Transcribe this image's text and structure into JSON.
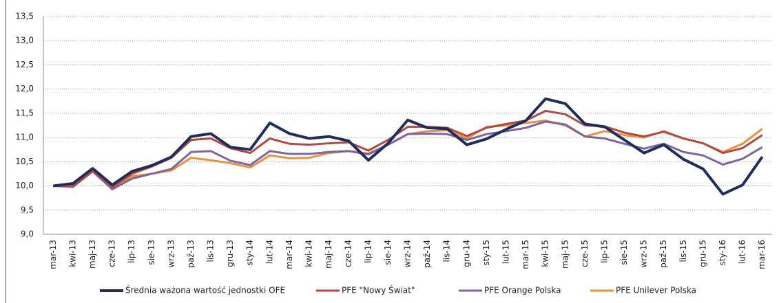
{
  "chart_data": {
    "type": "line",
    "categories": [
      "mar-13",
      "kwi-13",
      "maj-13",
      "cze-13",
      "lip-13",
      "sie-13",
      "wrz-13",
      "paź-13",
      "lis-13",
      "gru-13",
      "sty-14",
      "lut-14",
      "mar-14",
      "kwi-14",
      "maj-14",
      "cze-14",
      "lip-14",
      "sie-14",
      "wrz-14",
      "paź-14",
      "lis-14",
      "gru-14",
      "sty-15",
      "lut-15",
      "mar-15",
      "kwi-15",
      "maj-15",
      "cze-15",
      "lip-15",
      "sie-15",
      "wrz-15",
      "paź-15",
      "lis-15",
      "gru-15",
      "sty-16",
      "lut-16",
      "mar-16"
    ],
    "series": [
      {
        "name": "Średnia ważona wartość jednostki OFE",
        "color": "#1f2d5c",
        "values": [
          10.0,
          10.05,
          10.36,
          10.02,
          10.3,
          10.42,
          10.6,
          11.02,
          11.08,
          10.8,
          10.75,
          11.3,
          11.08,
          10.98,
          11.02,
          10.93,
          10.53,
          10.88,
          11.36,
          11.2,
          11.18,
          10.85,
          10.97,
          11.17,
          11.35,
          11.8,
          11.7,
          11.28,
          11.22,
          10.95,
          10.68,
          10.85,
          10.55,
          10.35,
          9.83,
          10.02,
          10.6
        ]
      },
      {
        "name": "PFE \"Nowy Świat\"",
        "color": "#b04a45",
        "values": [
          10.0,
          9.98,
          10.3,
          9.97,
          10.25,
          10.4,
          10.58,
          10.95,
          10.98,
          10.78,
          10.68,
          10.98,
          10.87,
          10.85,
          10.88,
          10.9,
          10.73,
          10.95,
          11.22,
          11.22,
          11.2,
          11.03,
          11.2,
          11.28,
          11.35,
          11.55,
          11.48,
          11.25,
          11.23,
          11.1,
          11.02,
          11.12,
          10.98,
          10.88,
          10.68,
          10.78,
          11.05
        ]
      },
      {
        "name": "PFE Orange Polska",
        "color": "#7e64a0",
        "values": [
          10.0,
          10.03,
          10.3,
          9.93,
          10.15,
          10.25,
          10.35,
          10.7,
          10.72,
          10.52,
          10.43,
          10.72,
          10.66,
          10.66,
          10.7,
          10.72,
          10.65,
          10.85,
          11.07,
          11.08,
          11.07,
          10.95,
          11.07,
          11.13,
          11.2,
          11.33,
          11.27,
          11.02,
          10.98,
          10.87,
          10.77,
          10.87,
          10.7,
          10.63,
          10.44,
          10.56,
          10.8
        ]
      },
      {
        "name": "PFE Unilever Polska",
        "color": "#e8913f",
        "values": [
          10.0,
          10.05,
          10.3,
          9.95,
          10.2,
          10.25,
          10.32,
          10.58,
          10.53,
          10.47,
          10.38,
          10.63,
          10.57,
          10.58,
          10.68,
          10.72,
          10.67,
          10.85,
          11.07,
          11.13,
          11.15,
          10.98,
          11.22,
          11.25,
          11.3,
          11.35,
          11.25,
          11.02,
          11.13,
          11.05,
          11.0,
          11.13,
          10.98,
          10.88,
          10.7,
          10.87,
          11.18
        ]
      }
    ],
    "ylim": [
      9.0,
      13.5
    ],
    "yticks": [
      {
        "value": 9.0,
        "label": "9,0"
      },
      {
        "value": 9.5,
        "label": "9,5"
      },
      {
        "value": 10.0,
        "label": "10,0"
      },
      {
        "value": 10.5,
        "label": "10,5"
      },
      {
        "value": 11.0,
        "label": "11,0"
      },
      {
        "value": 11.5,
        "label": "11,5"
      },
      {
        "value": 12.0,
        "label": "12,0"
      },
      {
        "value": 12.5,
        "label": "12,5"
      },
      {
        "value": 13.0,
        "label": "13,0"
      },
      {
        "value": 13.5,
        "label": "13,5"
      }
    ],
    "grid": true,
    "legend": "bottom"
  }
}
